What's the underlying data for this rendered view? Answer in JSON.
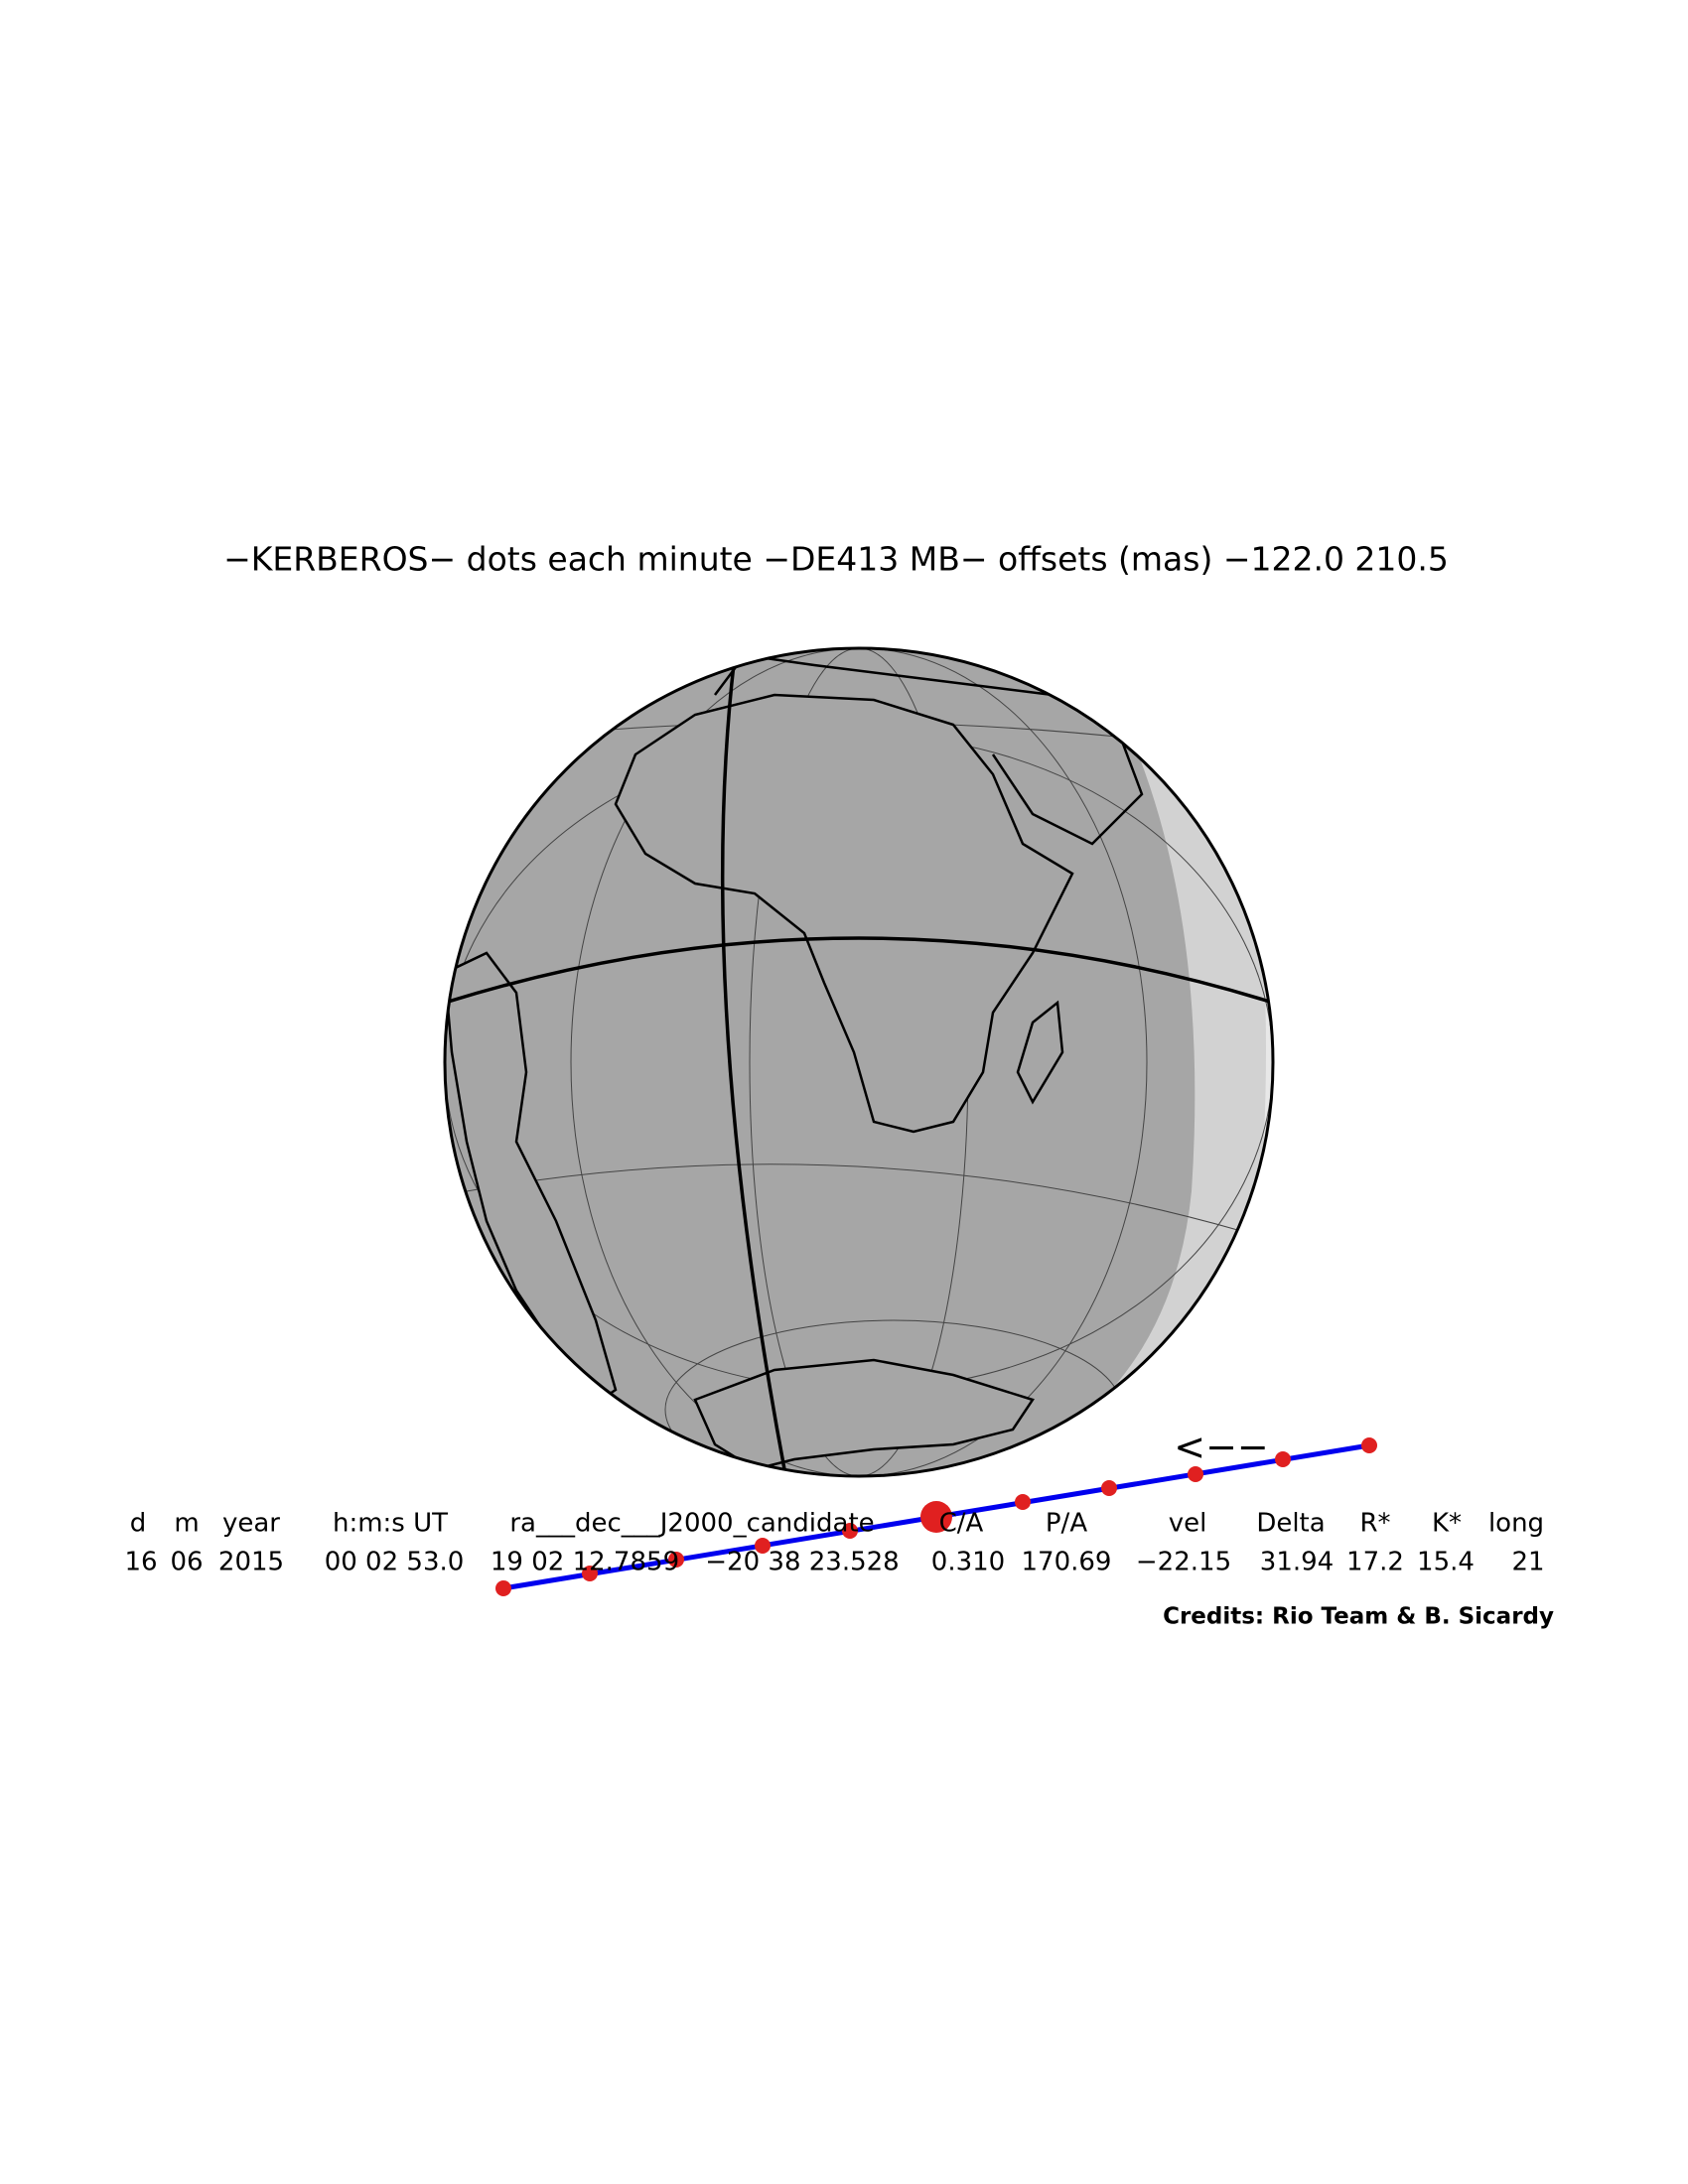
{
  "title": "−KERBEROS− dots each minute −DE413 MB− offsets (mas) −122.0   210.5",
  "arrow_label": "<−−",
  "table": {
    "headers": [
      "d",
      "m",
      "year",
      "h:m:s UT",
      "ra___dec___J2000_candidate",
      "C/A",
      "P/A",
      "vel",
      "Delta",
      "R*",
      "K*",
      "long"
    ],
    "values": [
      "16",
      "06",
      "2015",
      "00 02 53.0",
      "19 02 12.7859",
      "−20 38 23.528",
      "0.310",
      "170.69",
      "−22.15",
      "31.94",
      "17.2",
      "15.4",
      "21"
    ]
  },
  "credits": "Credits: Rio Team & B. Sicardy"
}
